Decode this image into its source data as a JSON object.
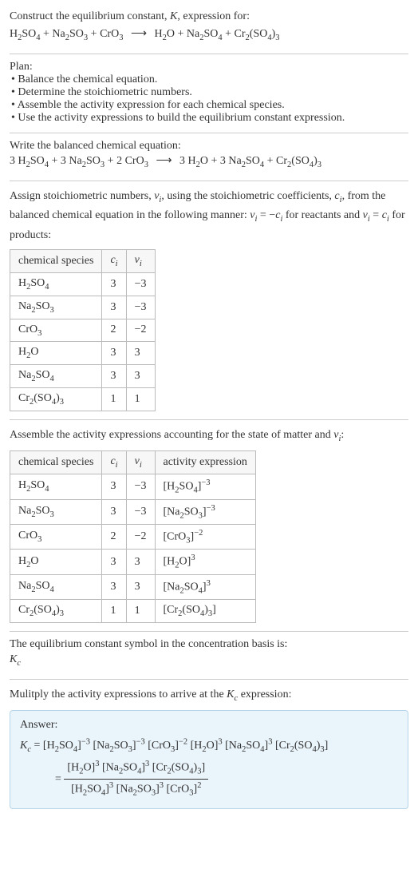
{
  "header": {
    "line1": "Construct the equilibrium constant, <span class='italic'>K</span>, expression for:",
    "equation": "H<span class='sub'>2</span>SO<span class='sub'>4</span> + Na<span class='sub'>2</span>SO<span class='sub'>3</span> + CrO<span class='sub'>3</span> <span class='arrow'>⟶</span> H<span class='sub'>2</span>O + Na<span class='sub'>2</span>SO<span class='sub'>4</span> + Cr<span class='sub'>2</span>(SO<span class='sub'>4</span>)<span class='sub'>3</span>"
  },
  "plan": {
    "title": "Plan:",
    "items": [
      "Balance the chemical equation.",
      "Determine the stoichiometric numbers.",
      "Assemble the activity expression for each chemical species.",
      "Use the activity expressions to build the equilibrium constant expression."
    ]
  },
  "balanced": {
    "title": "Write the balanced chemical equation:",
    "equation": "3 H<span class='sub'>2</span>SO<span class='sub'>4</span> + 3 Na<span class='sub'>2</span>SO<span class='sub'>3</span> + 2 CrO<span class='sub'>3</span> <span class='arrow'>⟶</span> 3 H<span class='sub'>2</span>O + 3 Na<span class='sub'>2</span>SO<span class='sub'>4</span> + Cr<span class='sub'>2</span>(SO<span class='sub'>4</span>)<span class='sub'>3</span>"
  },
  "stoich": {
    "text": "Assign stoichiometric numbers, <span class='italic'>ν<span class='sub'>i</span></span>, using the stoichiometric coefficients, <span class='italic'>c<span class='sub'>i</span></span>, from the balanced chemical equation in the following manner: <span class='italic'>ν<span class='sub'>i</span></span> = −<span class='italic'>c<span class='sub'>i</span></span> for reactants and <span class='italic'>ν<span class='sub'>i</span></span> = <span class='italic'>c<span class='sub'>i</span></span> for products:",
    "headers": [
      "chemical species",
      "<span class='italic'>c<span class='sub'>i</span></span>",
      "<span class='italic'>ν<span class='sub'>i</span></span>"
    ],
    "rows": [
      [
        "H<span class='sub'>2</span>SO<span class='sub'>4</span>",
        "3",
        "−3"
      ],
      [
        "Na<span class='sub'>2</span>SO<span class='sub'>3</span>",
        "3",
        "−3"
      ],
      [
        "CrO<span class='sub'>3</span>",
        "2",
        "−2"
      ],
      [
        "H<span class='sub'>2</span>O",
        "3",
        "3"
      ],
      [
        "Na<span class='sub'>2</span>SO<span class='sub'>4</span>",
        "3",
        "3"
      ],
      [
        "Cr<span class='sub'>2</span>(SO<span class='sub'>4</span>)<span class='sub'>3</span>",
        "1",
        "1"
      ]
    ]
  },
  "activity": {
    "title": "Assemble the activity expressions accounting for the state of matter and <span class='italic'>ν<span class='sub'>i</span></span>:",
    "headers": [
      "chemical species",
      "<span class='italic'>c<span class='sub'>i</span></span>",
      "<span class='italic'>ν<span class='sub'>i</span></span>",
      "activity expression"
    ],
    "rows": [
      [
        "H<span class='sub'>2</span>SO<span class='sub'>4</span>",
        "3",
        "−3",
        "[H<span class='sub'>2</span>SO<span class='sub'>4</span>]<span class='sup'>−3</span>"
      ],
      [
        "Na<span class='sub'>2</span>SO<span class='sub'>3</span>",
        "3",
        "−3",
        "[Na<span class='sub'>2</span>SO<span class='sub'>3</span>]<span class='sup'>−3</span>"
      ],
      [
        "CrO<span class='sub'>3</span>",
        "2",
        "−2",
        "[CrO<span class='sub'>3</span>]<span class='sup'>−2</span>"
      ],
      [
        "H<span class='sub'>2</span>O",
        "3",
        "3",
        "[H<span class='sub'>2</span>O]<span class='sup'>3</span>"
      ],
      [
        "Na<span class='sub'>2</span>SO<span class='sub'>4</span>",
        "3",
        "3",
        "[Na<span class='sub'>2</span>SO<span class='sub'>4</span>]<span class='sup'>3</span>"
      ],
      [
        "Cr<span class='sub'>2</span>(SO<span class='sub'>4</span>)<span class='sub'>3</span>",
        "1",
        "1",
        "[Cr<span class='sub'>2</span>(SO<span class='sub'>4</span>)<span class='sub'>3</span>]"
      ]
    ]
  },
  "kc_symbol": {
    "line1": "The equilibrium constant symbol in the concentration basis is:",
    "line2": "<span class='italic'>K<span class='sub'>c</span></span>"
  },
  "multiply": {
    "title": "Mulitply the activity expressions to arrive at the <span class='italic'>K<span class='sub'>c</span></span> expression:"
  },
  "answer": {
    "label": "Answer:",
    "kc_left": "<span class='italic'>K<span class='sub'>c</span></span> = ",
    "product": "[H<span class='sub'>2</span>SO<span class='sub'>4</span>]<span class='sup'>−3</span> [Na<span class='sub'>2</span>SO<span class='sub'>3</span>]<span class='sup'>−3</span> [CrO<span class='sub'>3</span>]<span class='sup'>−2</span> [H<span class='sub'>2</span>O]<span class='sup'>3</span> [Na<span class='sub'>2</span>SO<span class='sub'>4</span>]<span class='sup'>3</span> [Cr<span class='sub'>2</span>(SO<span class='sub'>4</span>)<span class='sub'>3</span>]",
    "frac_num": "[H<span class='sub'>2</span>O]<span class='sup'>3</span> [Na<span class='sub'>2</span>SO<span class='sub'>4</span>]<span class='sup'>3</span> [Cr<span class='sub'>2</span>(SO<span class='sub'>4</span>)<span class='sub'>3</span>]",
    "frac_den": "[H<span class='sub'>2</span>SO<span class='sub'>4</span>]<span class='sup'>3</span> [Na<span class='sub'>2</span>SO<span class='sub'>3</span>]<span class='sup'>3</span> [CrO<span class='sub'>3</span>]<span class='sup'>2</span>"
  },
  "style": {
    "answer_bg": "#eaf4fb",
    "answer_border": "#b5d4e8",
    "table_border": "#bbbbbb",
    "hr_color": "#cccccc",
    "font_size": 14
  }
}
